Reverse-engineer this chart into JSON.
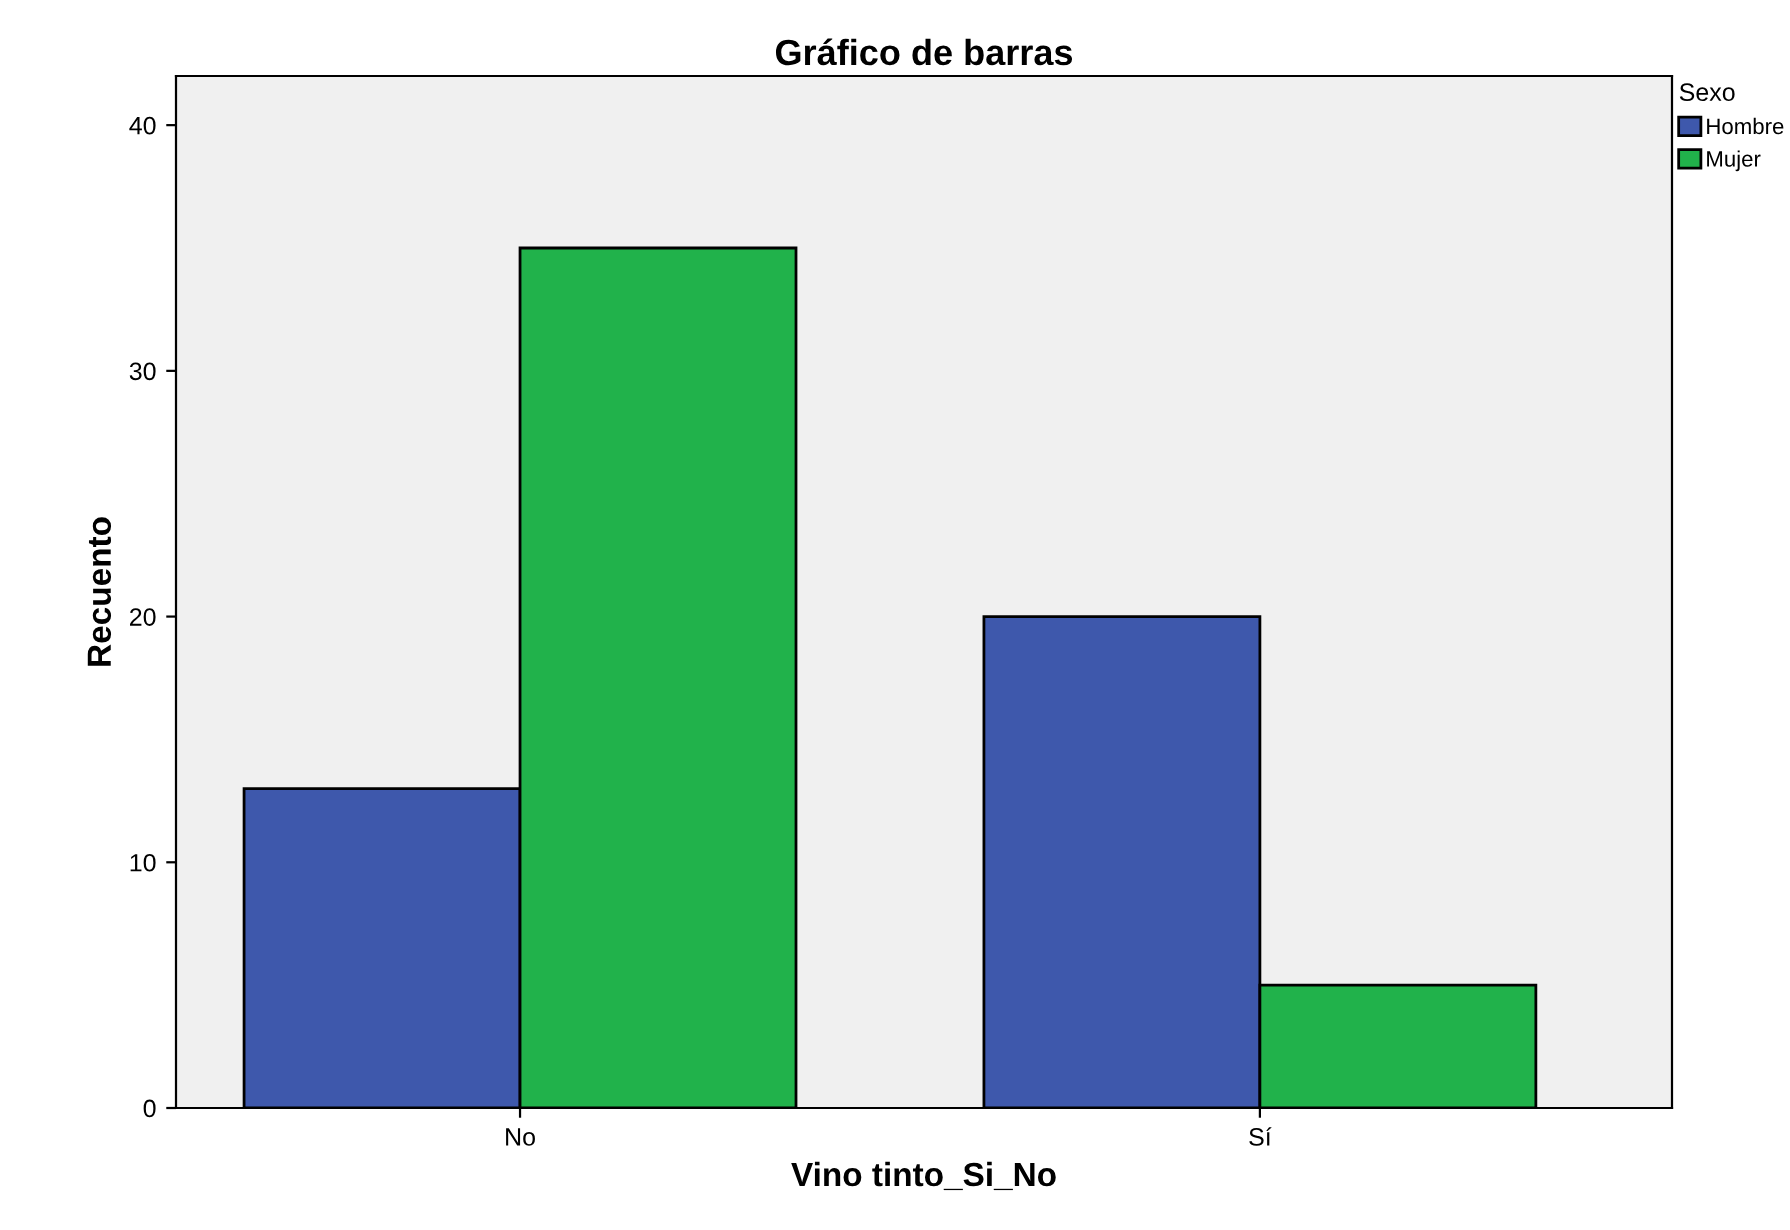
{
  "chart_data": {
    "type": "bar",
    "title": "Gráfico de barras",
    "xlabel": "Vino tinto_Si_No",
    "ylabel": "Recuento",
    "legend_title": "Sexo",
    "categories": [
      "No",
      "Sí"
    ],
    "series": [
      {
        "name": "Hombre",
        "color": "#3e58ac",
        "values": [
          13,
          20
        ]
      },
      {
        "name": "Mujer",
        "color": "#21b24b",
        "values": [
          35,
          5
        ]
      }
    ],
    "ylim": [
      0,
      42
    ],
    "yticks": [
      0,
      10,
      20,
      30,
      40
    ],
    "grid": false,
    "legend": "top right"
  }
}
